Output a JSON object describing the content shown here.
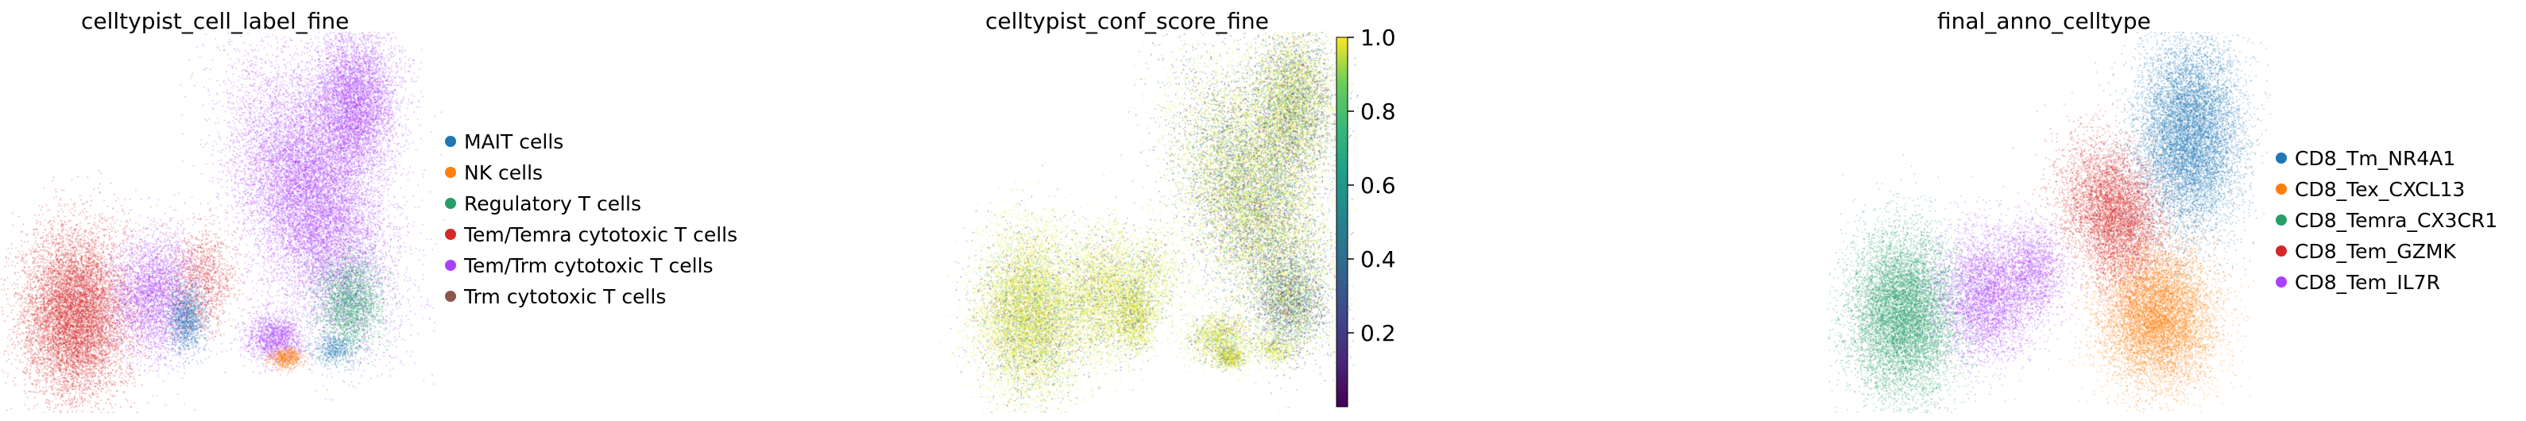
{
  "chart_data": [
    {
      "type": "scatter",
      "title": "celltypist_cell_label_fine",
      "legend": [
        {
          "name": "MAIT cells",
          "color": "#1f77b4"
        },
        {
          "name": "NK cells",
          "color": "#ff7f0e"
        },
        {
          "name": "Regulatory T cells",
          "color": "#279e68"
        },
        {
          "name": "Tem/Temra cytotoxic T cells",
          "color": "#d62728"
        },
        {
          "name": "Tem/Trm cytotoxic T cells",
          "color": "#aa40fc"
        },
        {
          "name": "Trm cytotoxic T cells",
          "color": "#8c564b"
        }
      ],
      "legend_position": "right",
      "grid": false
    },
    {
      "type": "scatter",
      "title": "celltypist_conf_score_fine",
      "colorbar": {
        "colormap": "viridis",
        "range": [
          0,
          1.0
        ],
        "ticks": [
          "0.2",
          "0.4",
          "0.6",
          "0.8",
          "1.0"
        ],
        "tick_values": [
          0.2,
          0.4,
          0.6,
          0.8,
          1.0
        ]
      },
      "grid": false
    },
    {
      "type": "scatter",
      "title": "final_anno_celltype",
      "legend": [
        {
          "name": "CD8_Tm_NR4A1",
          "color": "#1f77b4"
        },
        {
          "name": "CD8_Tex_CXCL13",
          "color": "#ff7f0e"
        },
        {
          "name": "CD8_Temra_CX3CR1",
          "color": "#279e68"
        },
        {
          "name": "CD8_Tem_GZMK",
          "color": "#d62728"
        },
        {
          "name": "CD8_Tem_IL7R",
          "color": "#aa40fc"
        }
      ],
      "legend_position": "right",
      "grid": false
    }
  ]
}
